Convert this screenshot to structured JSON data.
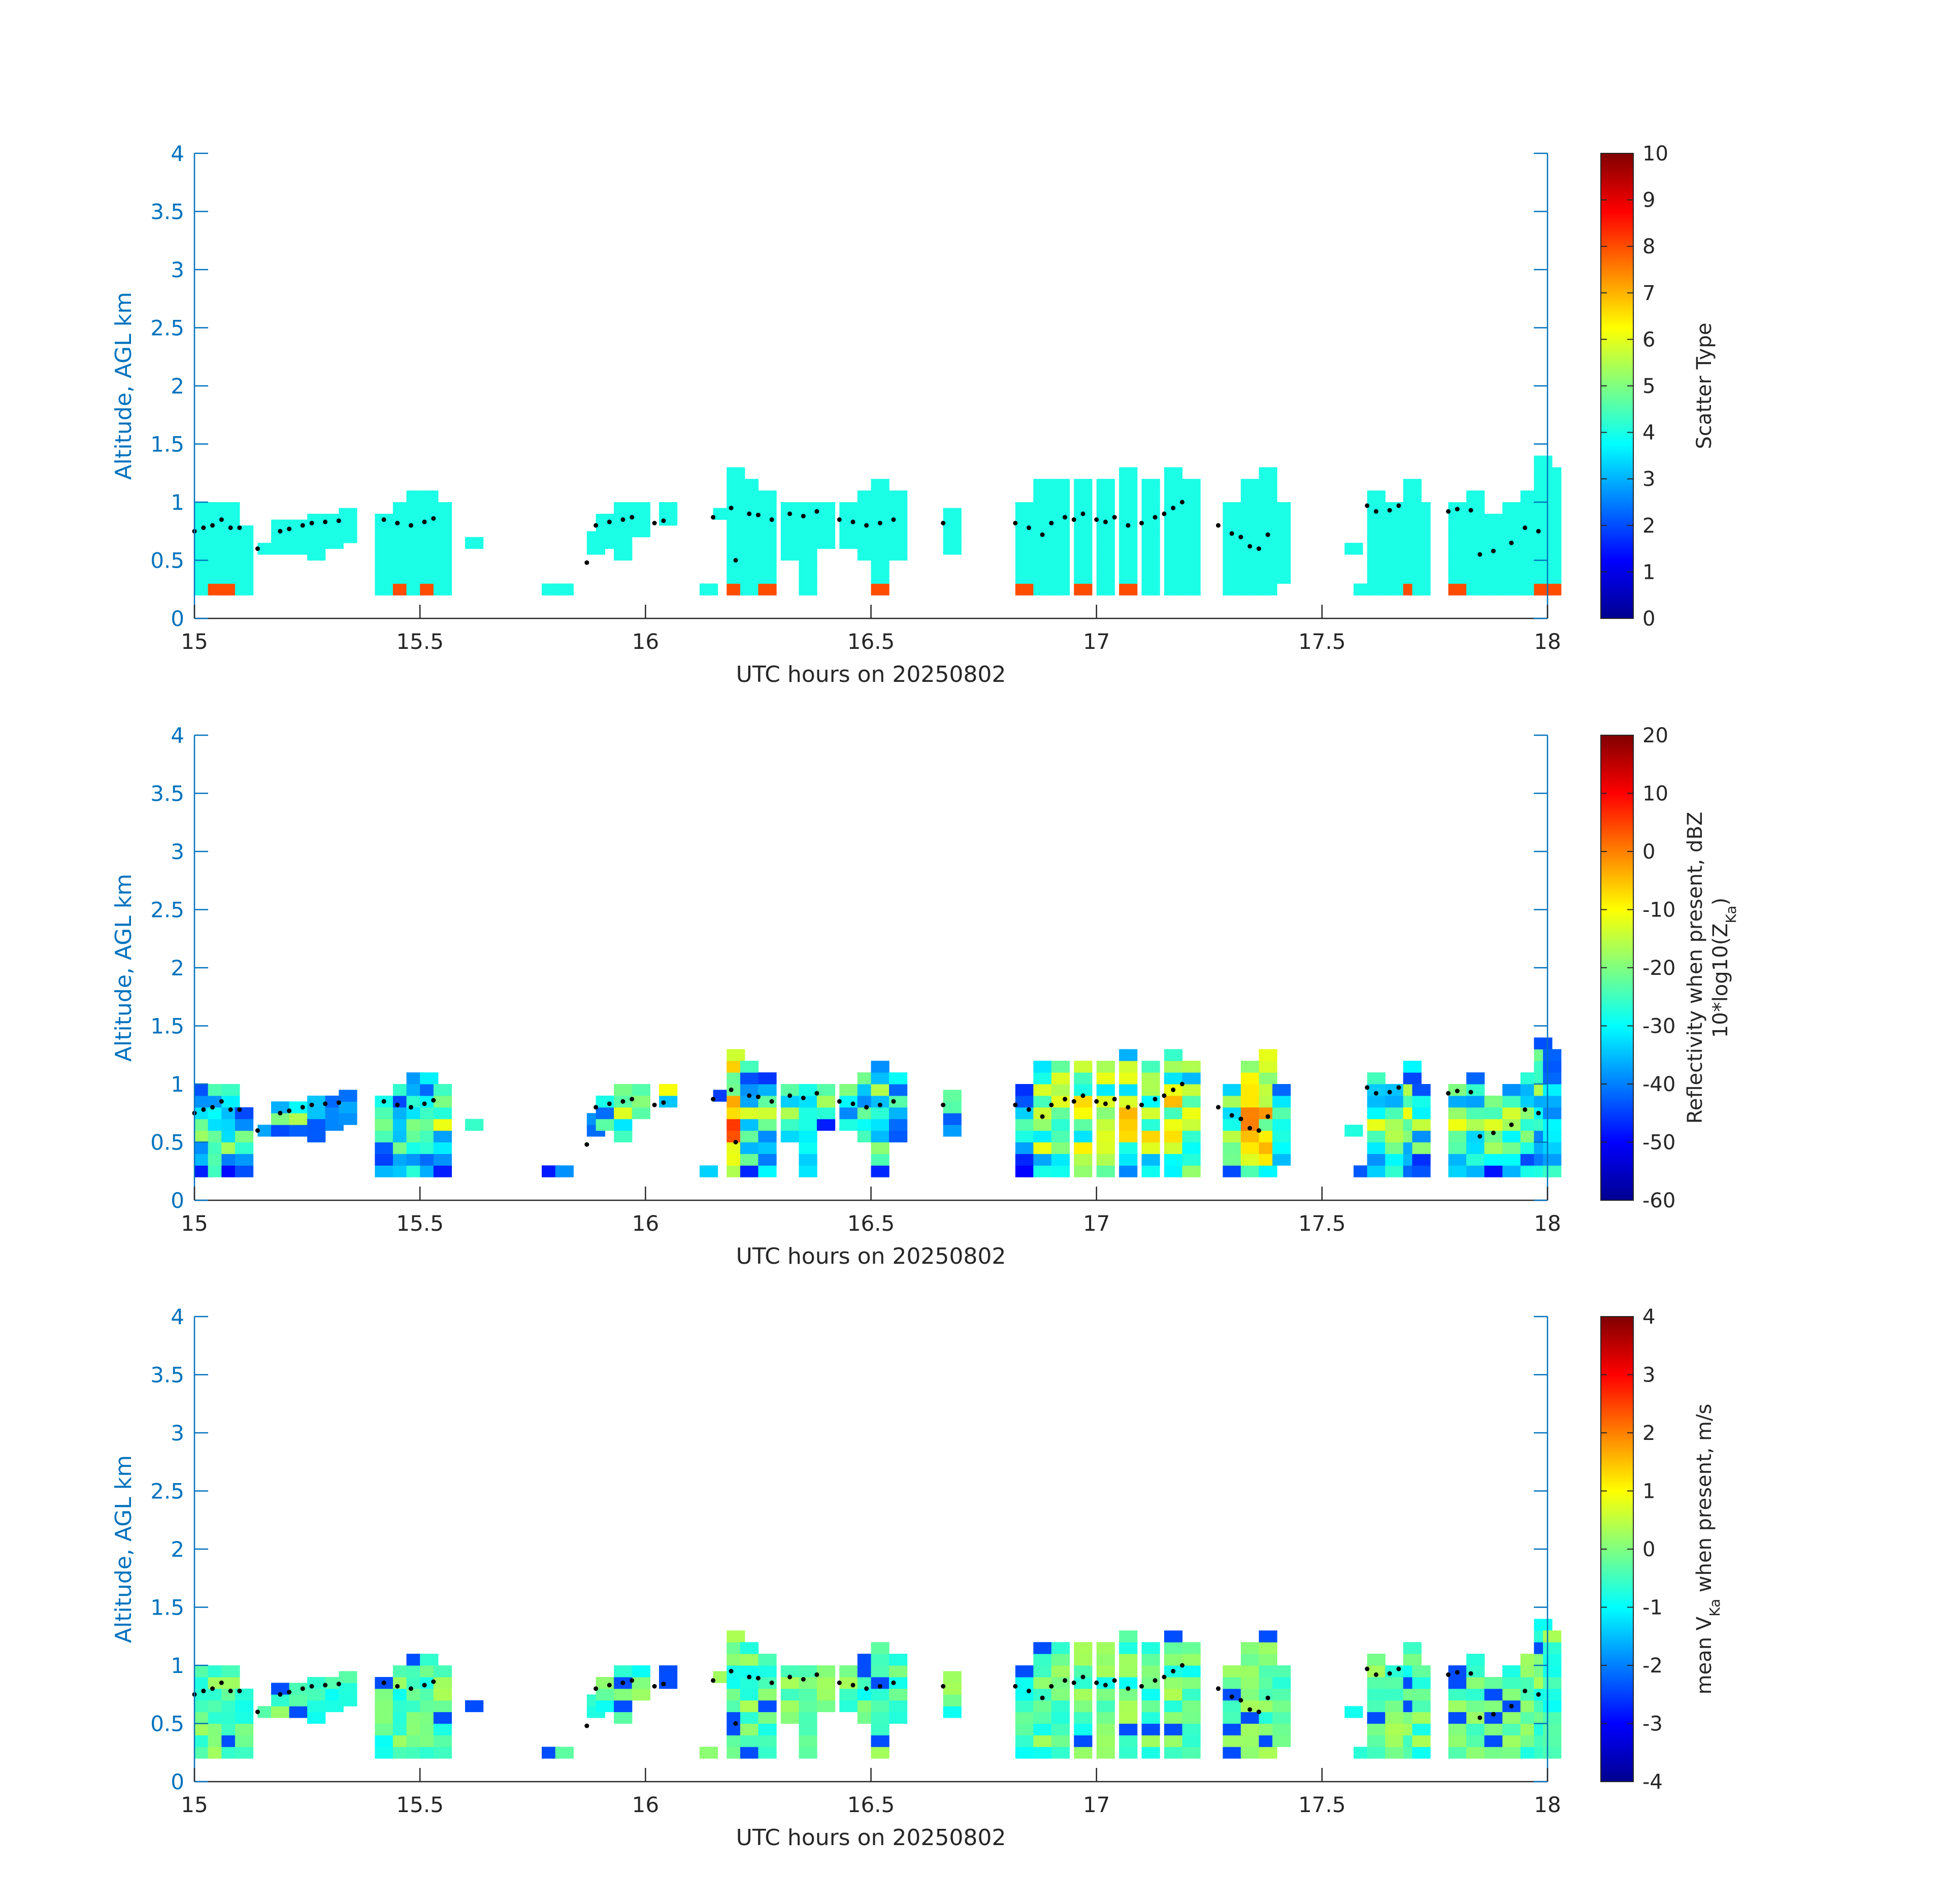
{
  "figure": {
    "axis_color": "#0072BD",
    "text_color": "#262626",
    "palette": "jet"
  },
  "chart_data": [
    {
      "type": "heatmap",
      "id": "scatter",
      "title": "",
      "xlabel": "UTC hours on 20250802",
      "ylabel": "Altitude, AGL km",
      "xlim": [
        15,
        18
      ],
      "ylim": [
        0,
        4
      ],
      "xticks": [
        "15",
        "15.5",
        "16",
        "16.5",
        "17",
        "17.5",
        "18"
      ],
      "yticks": [
        "0",
        "0.5",
        "1",
        "1.5",
        "2",
        "2.5",
        "3",
        "3.5",
        "4"
      ],
      "colorbar": {
        "label_parts": [
          {
            "text": "Scatter Type",
            "sub": ""
          }
        ],
        "range": [
          0,
          10
        ],
        "ticks": [
          "0",
          "1",
          "2",
          "3",
          "4",
          "5",
          "6",
          "7",
          "8",
          "9",
          "10"
        ]
      },
      "dominant_value": 4,
      "secondary_value": 8,
      "grid": false
    },
    {
      "type": "heatmap",
      "id": "reflectivity",
      "title": "",
      "xlabel": "UTC hours on 20250802",
      "ylabel": "Altitude, AGL km",
      "xlim": [
        15,
        18
      ],
      "ylim": [
        0,
        4
      ],
      "xticks": [
        "15",
        "15.5",
        "16",
        "16.5",
        "17",
        "17.5",
        "18"
      ],
      "yticks": [
        "0",
        "0.5",
        "1",
        "1.5",
        "2",
        "2.5",
        "3",
        "3.5",
        "4"
      ],
      "colorbar": {
        "label_line1": "Reflectivity when present, dBZ",
        "label_line2_parts": [
          {
            "text": "10*log10(Z",
            "sub": ""
          },
          {
            "text": "",
            "sub": "Ka"
          },
          {
            "text": ")",
            "sub": ""
          }
        ],
        "range": [
          -60,
          20
        ],
        "ticks": [
          "-60",
          "-50",
          "-40",
          "-30",
          "-20",
          "-10",
          "0",
          "10",
          "20"
        ]
      },
      "grid": false
    },
    {
      "type": "heatmap",
      "id": "velocity",
      "title": "",
      "xlabel": "UTC hours on 20250802",
      "ylabel": "Altitude, AGL km",
      "xlim": [
        15,
        18
      ],
      "ylim": [
        0,
        4
      ],
      "xticks": [
        "15",
        "15.5",
        "16",
        "16.5",
        "17",
        "17.5",
        "18"
      ],
      "yticks": [
        "0",
        "0.5",
        "1",
        "1.5",
        "2",
        "2.5",
        "3",
        "3.5",
        "4"
      ],
      "colorbar": {
        "label_parts": [
          {
            "text": "mean V",
            "sub": ""
          },
          {
            "text": "",
            "sub": "Ka"
          },
          {
            "text": " when present, m/s",
            "sub": ""
          }
        ],
        "range": [
          -4,
          4
        ],
        "ticks": [
          "-4",
          "-3",
          "-2",
          "-1",
          "0",
          "1",
          "2",
          "3",
          "4"
        ]
      },
      "grid": false
    }
  ],
  "cloud_mask": {
    "time_columns": [
      [
        15.0,
        0.2,
        1.0
      ],
      [
        15.03,
        0.2,
        1.0
      ],
      [
        15.06,
        0.2,
        0.95
      ],
      [
        15.09,
        0.2,
        0.8
      ],
      [
        15.14,
        0.55,
        0.65
      ],
      [
        15.17,
        0.55,
        0.85
      ],
      [
        15.21,
        0.55,
        0.85
      ],
      [
        15.25,
        0.5,
        0.9
      ],
      [
        15.29,
        0.6,
        0.9
      ],
      [
        15.32,
        0.65,
        0.9
      ],
      [
        15.4,
        0.2,
        0.9
      ],
      [
        15.44,
        0.2,
        0.95
      ],
      [
        15.47,
        0.2,
        1.1
      ],
      [
        15.5,
        0.2,
        1.1
      ],
      [
        15.53,
        0.2,
        0.95
      ],
      [
        15.6,
        0.6,
        0.7
      ],
      [
        15.77,
        0.2,
        0.3
      ],
      [
        15.8,
        0.2,
        0.3
      ],
      [
        15.87,
        0.55,
        0.7
      ],
      [
        15.89,
        0.6,
        0.9
      ],
      [
        15.93,
        0.5,
        0.95
      ],
      [
        15.97,
        0.7,
        1.0
      ],
      [
        16.03,
        0.8,
        1.0
      ],
      [
        16.12,
        0.2,
        0.3
      ],
      [
        16.15,
        0.85,
        0.95
      ],
      [
        16.18,
        0.2,
        1.25
      ],
      [
        16.21,
        0.2,
        1.2
      ],
      [
        16.25,
        0.2,
        1.05
      ],
      [
        16.3,
        0.5,
        0.95
      ],
      [
        16.34,
        0.2,
        1.0
      ],
      [
        16.38,
        0.6,
        0.95
      ],
      [
        16.43,
        0.6,
        1.0
      ],
      [
        16.47,
        0.5,
        1.05
      ],
      [
        16.5,
        0.2,
        1.2
      ],
      [
        16.54,
        0.5,
        1.05
      ],
      [
        16.66,
        0.55,
        0.9
      ],
      [
        16.82,
        0.2,
        1.0
      ],
      [
        16.86,
        0.2,
        1.15
      ],
      [
        16.9,
        0.2,
        1.2
      ],
      [
        16.95,
        0.2,
        1.2
      ],
      [
        17.0,
        0.2,
        1.2
      ],
      [
        17.05,
        0.2,
        1.25
      ],
      [
        17.1,
        0.2,
        1.2
      ],
      [
        17.15,
        0.2,
        1.25
      ],
      [
        17.19,
        0.2,
        1.2
      ],
      [
        17.28,
        0.2,
        1.0
      ],
      [
        17.32,
        0.2,
        1.15
      ],
      [
        17.36,
        0.2,
        1.25
      ],
      [
        17.39,
        0.3,
        1.0
      ],
      [
        17.55,
        0.55,
        0.65
      ],
      [
        17.57,
        0.2,
        0.3
      ],
      [
        17.6,
        0.2,
        1.05
      ],
      [
        17.64,
        0.2,
        1.0
      ],
      [
        17.68,
        0.2,
        1.2
      ],
      [
        17.7,
        0.2,
        1.0
      ],
      [
        17.78,
        0.2,
        1.0
      ],
      [
        17.82,
        0.2,
        1.05
      ],
      [
        17.86,
        0.2,
        0.9
      ],
      [
        17.9,
        0.2,
        1.0
      ],
      [
        17.94,
        0.2,
        1.05
      ],
      [
        17.97,
        0.2,
        1.35
      ],
      [
        17.99,
        0.2,
        1.3
      ]
    ],
    "cloud_base_dots": [
      [
        15.0,
        0.75
      ],
      [
        15.02,
        0.78
      ],
      [
        15.04,
        0.8
      ],
      [
        15.06,
        0.85
      ],
      [
        15.08,
        0.78
      ],
      [
        15.1,
        0.78
      ],
      [
        15.14,
        0.6
      ],
      [
        15.19,
        0.75
      ],
      [
        15.21,
        0.77
      ],
      [
        15.24,
        0.8
      ],
      [
        15.26,
        0.82
      ],
      [
        15.29,
        0.83
      ],
      [
        15.32,
        0.84
      ],
      [
        15.42,
        0.85
      ],
      [
        15.45,
        0.82
      ],
      [
        15.48,
        0.8
      ],
      [
        15.51,
        0.83
      ],
      [
        15.53,
        0.86
      ],
      [
        15.87,
        0.48
      ],
      [
        15.89,
        0.8
      ],
      [
        15.92,
        0.83
      ],
      [
        15.95,
        0.85
      ],
      [
        15.97,
        0.87
      ],
      [
        16.02,
        0.82
      ],
      [
        16.04,
        0.84
      ],
      [
        16.15,
        0.87
      ],
      [
        16.19,
        0.95
      ],
      [
        16.2,
        0.5
      ],
      [
        16.23,
        0.9
      ],
      [
        16.25,
        0.89
      ],
      [
        16.28,
        0.85
      ],
      [
        16.32,
        0.9
      ],
      [
        16.35,
        0.88
      ],
      [
        16.38,
        0.92
      ],
      [
        16.43,
        0.85
      ],
      [
        16.46,
        0.83
      ],
      [
        16.49,
        0.8
      ],
      [
        16.52,
        0.82
      ],
      [
        16.55,
        0.85
      ],
      [
        16.66,
        0.82
      ],
      [
        16.82,
        0.82
      ],
      [
        16.85,
        0.78
      ],
      [
        16.88,
        0.72
      ],
      [
        16.9,
        0.82
      ],
      [
        16.93,
        0.87
      ],
      [
        16.95,
        0.85
      ],
      [
        16.97,
        0.9
      ],
      [
        17.0,
        0.85
      ],
      [
        17.02,
        0.83
      ],
      [
        17.04,
        0.87
      ],
      [
        17.07,
        0.8
      ],
      [
        17.1,
        0.82
      ],
      [
        17.13,
        0.87
      ],
      [
        17.15,
        0.9
      ],
      [
        17.17,
        0.95
      ],
      [
        17.19,
        1.0
      ],
      [
        17.27,
        0.8
      ],
      [
        17.3,
        0.73
      ],
      [
        17.32,
        0.7
      ],
      [
        17.34,
        0.62
      ],
      [
        17.36,
        0.6
      ],
      [
        17.38,
        0.72
      ],
      [
        17.6,
        0.97
      ],
      [
        17.62,
        0.92
      ],
      [
        17.65,
        0.93
      ],
      [
        17.67,
        0.97
      ],
      [
        17.78,
        0.92
      ],
      [
        17.8,
        0.94
      ],
      [
        17.83,
        0.93
      ],
      [
        17.85,
        0.55
      ],
      [
        17.88,
        0.58
      ],
      [
        17.92,
        0.65
      ],
      [
        17.95,
        0.78
      ],
      [
        17.98,
        0.75
      ]
    ]
  }
}
